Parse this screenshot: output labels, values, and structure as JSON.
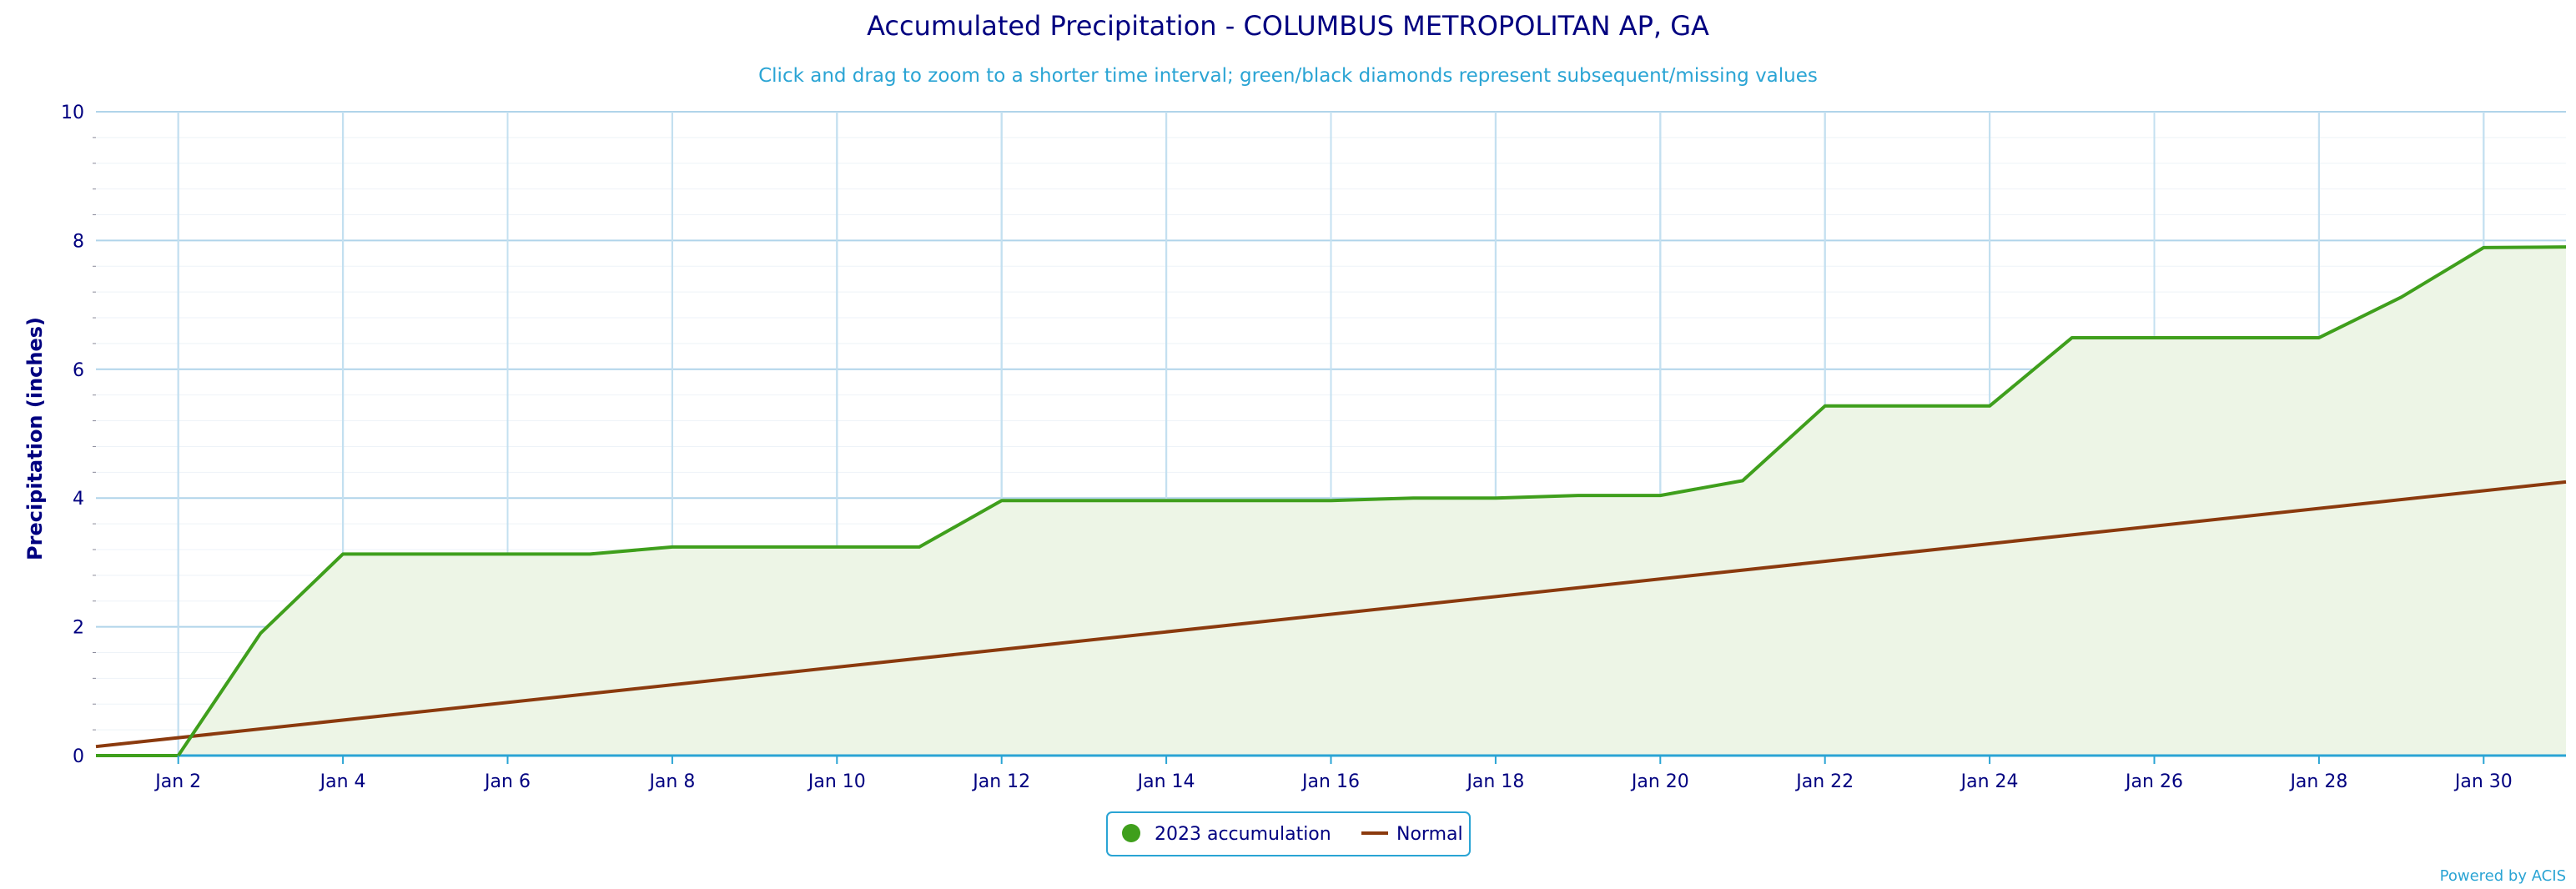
{
  "chart_data": {
    "type": "area",
    "title": "Accumulated Precipitation - COLUMBUS METROPOLITAN AP, GA",
    "subtitle": "Click and drag to zoom to a shorter time interval; green/black diamonds represent subsequent/missing values",
    "ylabel": "Precipitation (inches)",
    "xlabel": "",
    "ylim": [
      0,
      10
    ],
    "yticks": [
      0,
      2,
      4,
      6,
      8,
      10
    ],
    "xlim": [
      1,
      31
    ],
    "xticks": [
      {
        "day": 2,
        "label": "Jan 2"
      },
      {
        "day": 4,
        "label": "Jan 4"
      },
      {
        "day": 6,
        "label": "Jan 6"
      },
      {
        "day": 8,
        "label": "Jan 8"
      },
      {
        "day": 10,
        "label": "Jan 10"
      },
      {
        "day": 12,
        "label": "Jan 12"
      },
      {
        "day": 14,
        "label": "Jan 14"
      },
      {
        "day": 16,
        "label": "Jan 16"
      },
      {
        "day": 18,
        "label": "Jan 18"
      },
      {
        "day": 20,
        "label": "Jan 20"
      },
      {
        "day": 22,
        "label": "Jan 22"
      },
      {
        "day": 24,
        "label": "Jan 24"
      },
      {
        "day": 26,
        "label": "Jan 26"
      },
      {
        "day": 28,
        "label": "Jan 28"
      },
      {
        "day": 30,
        "label": "Jan 30"
      }
    ],
    "grid": true,
    "legend_position": "bottom-center",
    "series": [
      {
        "name": "2023 accumulation",
        "color": "#3f9f1c",
        "fill": "#edf5e6",
        "x": [
          1,
          2,
          3,
          4,
          5,
          6,
          7,
          8,
          9,
          10,
          11,
          12,
          13,
          14,
          15,
          16,
          17,
          18,
          19,
          20,
          21,
          22,
          23,
          24,
          25,
          26,
          27,
          28,
          29,
          30,
          31
        ],
        "values": [
          0,
          0,
          1.9,
          3.13,
          3.13,
          3.13,
          3.13,
          3.24,
          3.24,
          3.24,
          3.24,
          3.96,
          3.96,
          3.96,
          3.96,
          3.96,
          4.0,
          4.0,
          4.04,
          4.04,
          4.27,
          5.43,
          5.43,
          5.43,
          6.49,
          6.49,
          6.49,
          6.49,
          7.12,
          7.89,
          7.9
        ]
      },
      {
        "name": "Normal",
        "color": "#8b3a0e",
        "x": [
          1,
          31
        ],
        "values": [
          0.14,
          4.25
        ]
      }
    ],
    "credit": "Powered by ACIS"
  }
}
